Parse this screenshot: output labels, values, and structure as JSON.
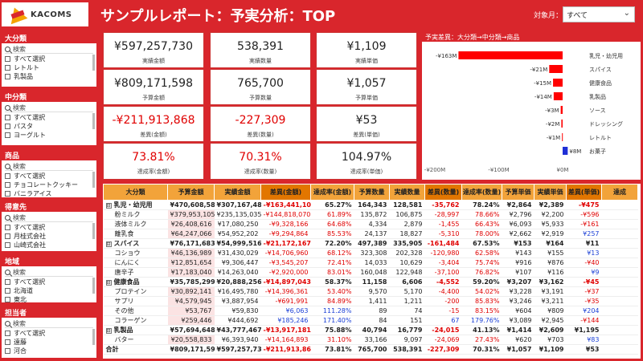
{
  "header": {
    "logo_text": "KACOMS",
    "title": "サンプルレポート：予実分析：TOP",
    "month_label": "対象月：",
    "month_value": "すべて"
  },
  "slicers": [
    {
      "title": "大分類",
      "search": "検索",
      "items": [
        "すべて選択",
        "レトルト",
        "乳製品"
      ]
    },
    {
      "title": "中分類",
      "search": "検索",
      "items": [
        "すべて選択",
        "パスタ",
        "ヨーグルト"
      ]
    },
    {
      "title": "商品",
      "search": "検索",
      "items": [
        "すべて選択",
        "チョコレートクッキー",
        "バニラアイス"
      ]
    },
    {
      "title": "得意先",
      "search": "検索",
      "items": [
        "すべて選択",
        "月桂式会社",
        "山崎式会社"
      ]
    },
    {
      "title": "地域",
      "search": "検索",
      "items": [
        "すべて選択",
        "北海道",
        "東北"
      ]
    },
    {
      "title": "担当者",
      "search": "検索",
      "items": [
        "すべて選択",
        "遠藤",
        "河合"
      ]
    }
  ],
  "cards": {
    "actual_amount": {
      "value": "¥597,257,730",
      "label": "実績金額"
    },
    "actual_qty": {
      "value": "538,391",
      "label": "実績数量"
    },
    "actual_price": {
      "value": "¥1,109",
      "label": "実績単価"
    },
    "budget_amount": {
      "value": "¥809,171,598",
      "label": "予算金額"
    },
    "budget_qty": {
      "value": "765,700",
      "label": "予算数量"
    },
    "budget_price": {
      "value": "¥1,057",
      "label": "予算単価"
    },
    "diff_amount": {
      "value": "-¥211,913,868",
      "label": "差異(金額)"
    },
    "diff_qty": {
      "value": "-227,309",
      "label": "差異(数量)"
    },
    "diff_price": {
      "value": "¥53",
      "label": "差異(単価)"
    },
    "rate_amount": {
      "value": "73.81%",
      "label": "達成率(金額)"
    },
    "rate_qty": {
      "value": "70.31%",
      "label": "達成率(数量)"
    },
    "rate_price": {
      "value": "104.97%",
      "label": "達成率(単価)"
    }
  },
  "chart_data": {
    "type": "bar",
    "orientation": "horizontal",
    "title": "予実差異：大分類→中分類→商品",
    "categories": [
      "乳児・幼児用",
      "スパイス",
      "健康食品",
      "乳製品",
      "ソース",
      "ドレッシング",
      "レトルト",
      "お菓子"
    ],
    "values": [
      -163,
      -21,
      -15,
      -14,
      -3,
      -2,
      -1,
      8
    ],
    "data_labels": [
      "-¥163M",
      "-¥21M",
      "-¥15M",
      "-¥14M",
      "-¥3M",
      "-¥2M",
      "-¥1M",
      "¥8M"
    ],
    "colors": [
      "#ff0000",
      "#ff0000",
      "#ff0000",
      "#ff0000",
      "#ff0000",
      "#ff0000",
      "#ff0000",
      "#1f2fd6"
    ],
    "xlim": [
      -200,
      0
    ],
    "xticks": [
      "-¥200M",
      "-¥100M",
      "¥0M"
    ]
  },
  "table": {
    "headers": [
      "大分類",
      "予算金額",
      "実績金額",
      "差異(金額)",
      "達成率(金額)",
      "予算数量",
      "実績数量",
      "差異(数量)",
      "達成率(数量)",
      "予算単価",
      "実績単価",
      "差異(単価)",
      "達成"
    ],
    "rows": [
      {
        "type": "grp",
        "exp": "⊟",
        "cells": [
          "乳児・幼児用",
          "¥470,608,587",
          "¥307,167,487",
          "-¥163,441,100",
          "65.27%",
          "164,343",
          "128,581",
          "-35,762",
          "78.24%",
          "¥2,864",
          "¥2,389",
          "-¥475",
          ""
        ],
        "neg": [
          3,
          7,
          11
        ]
      },
      {
        "type": "item",
        "cells": [
          "粉ミルク",
          "¥379,953,105",
          "¥235,135,035",
          "-¥144,818,070",
          "61.89%",
          "135,872",
          "106,875",
          "-28,997",
          "78.66%",
          "¥2,796",
          "¥2,200",
          "-¥596",
          ""
        ],
        "neg": [
          3,
          4,
          7,
          8,
          11
        ]
      },
      {
        "type": "item",
        "cells": [
          "液体ミルク",
          "¥26,408,616",
          "¥17,080,250",
          "-¥9,328,166",
          "64.68%",
          "4,334",
          "2,879",
          "-1,455",
          "66.43%",
          "¥6,093",
          "¥5,933",
          "-¥161",
          ""
        ],
        "neg": [
          3,
          4,
          7,
          8,
          11
        ]
      },
      {
        "type": "item",
        "cells": [
          "離乳食",
          "¥64,247,066",
          "¥54,952,202",
          "-¥9,294,864",
          "85.53%",
          "24,137",
          "18,827",
          "-5,310",
          "78.00%",
          "¥2,662",
          "¥2,919",
          "¥257",
          ""
        ],
        "neg": [
          3,
          4,
          7,
          8
        ],
        "blue": [
          11
        ]
      },
      {
        "type": "grp",
        "exp": "⊟",
        "cells": [
          "スパイス",
          "¥76,171,683",
          "¥54,999,516",
          "-¥21,172,167",
          "72.20%",
          "497,389",
          "335,905",
          "-161,484",
          "67.53%",
          "¥153",
          "¥164",
          "¥11",
          ""
        ],
        "neg": [
          3,
          7
        ]
      },
      {
        "type": "item",
        "cells": [
          "コショウ",
          "¥46,136,989",
          "¥31,430,029",
          "-¥14,706,960",
          "68.12%",
          "323,308",
          "202,328",
          "-120,980",
          "62.58%",
          "¥143",
          "¥155",
          "¥13",
          ""
        ],
        "neg": [
          3,
          4,
          7,
          8
        ],
        "blue": [
          11
        ]
      },
      {
        "type": "item",
        "cells": [
          "にんにく",
          "¥12,851,654",
          "¥9,306,447",
          "-¥3,545,207",
          "72.41%",
          "14,033",
          "10,629",
          "-3,404",
          "75.74%",
          "¥916",
          "¥876",
          "-¥40",
          ""
        ],
        "neg": [
          3,
          4,
          7,
          8,
          11
        ]
      },
      {
        "type": "item",
        "cells": [
          "唐辛子",
          "¥17,183,040",
          "¥14,263,040",
          "-¥2,920,000",
          "83.01%",
          "160,048",
          "122,948",
          "-37,100",
          "76.82%",
          "¥107",
          "¥116",
          "¥9",
          ""
        ],
        "neg": [
          3,
          4,
          7,
          8
        ],
        "blue": [
          11
        ]
      },
      {
        "type": "grp",
        "exp": "⊟",
        "cells": [
          "健康食品",
          "¥35,785,299",
          "¥20,888,256",
          "-¥14,897,043",
          "58.37%",
          "11,158",
          "6,606",
          "-4,552",
          "59.20%",
          "¥3,207",
          "¥3,162",
          "-¥45",
          ""
        ],
        "neg": [
          3,
          7,
          11
        ]
      },
      {
        "type": "item",
        "cells": [
          "プロテイン",
          "¥30,892,141",
          "¥16,495,780",
          "-¥14,396,361",
          "53.40%",
          "9,570",
          "5,170",
          "-4,400",
          "54.02%",
          "¥3,228",
          "¥3,191",
          "-¥37",
          ""
        ],
        "neg": [
          3,
          4,
          7,
          8,
          11
        ]
      },
      {
        "type": "item",
        "cells": [
          "サプリ",
          "¥4,579,945",
          "¥3,887,954",
          "-¥691,991",
          "84.89%",
          "1,411",
          "1,211",
          "-200",
          "85.83%",
          "¥3,246",
          "¥3,211",
          "-¥35",
          ""
        ],
        "neg": [
          3,
          4,
          7,
          8,
          11
        ]
      },
      {
        "type": "item",
        "cells": [
          "その他",
          "¥53,767",
          "¥59,830",
          "¥6,063",
          "111.28%",
          "89",
          "74",
          "-15",
          "83.15%",
          "¥604",
          "¥809",
          "¥204",
          ""
        ],
        "neg": [
          7,
          8
        ],
        "blue": [
          3,
          4,
          11
        ]
      },
      {
        "type": "item",
        "cells": [
          "コラーゲン",
          "¥259,446",
          "¥444,692",
          "¥185,246",
          "171.40%",
          "84",
          "151",
          "67",
          "179.76%",
          "¥3,089",
          "¥2,945",
          "-¥144",
          ""
        ],
        "neg": [
          11
        ],
        "blue": [
          3,
          4,
          7,
          8
        ]
      },
      {
        "type": "grp",
        "exp": "⊟",
        "cells": [
          "乳製品",
          "¥57,694,648",
          "¥43,777,467",
          "-¥13,917,181",
          "75.88%",
          "40,794",
          "16,779",
          "-24,015",
          "41.13%",
          "¥1,414",
          "¥2,609",
          "¥1,195",
          ""
        ],
        "neg": [
          3,
          7
        ]
      },
      {
        "type": "item",
        "cells": [
          "バター",
          "¥20,558,833",
          "¥6,393,940",
          "-¥14,164,893",
          "31.10%",
          "33,166",
          "9,097",
          "-24,069",
          "27.43%",
          "¥620",
          "¥703",
          "¥83",
          ""
        ],
        "neg": [
          3,
          4,
          7,
          8
        ],
        "blue": [
          11
        ]
      },
      {
        "type": "total",
        "cells": [
          "合計",
          "¥809,171,598",
          "¥597,257,730",
          "-¥211,913,868",
          "73.81%",
          "765,700",
          "538,391",
          "-227,309",
          "70.31%",
          "¥1,057",
          "¥1,109",
          "¥53",
          ""
        ],
        "neg": [
          3,
          7
        ]
      }
    ]
  }
}
